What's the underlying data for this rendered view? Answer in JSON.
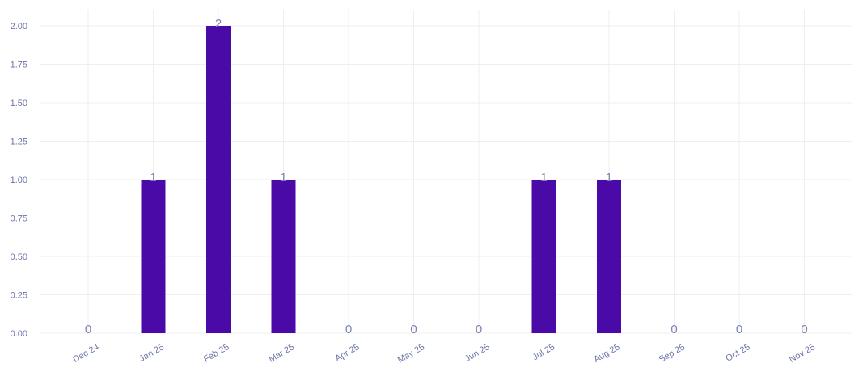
{
  "chart_data": {
    "type": "bar",
    "categories": [
      "Dec 24",
      "Jan 25",
      "Feb 25",
      "Mar 25",
      "Apr 25",
      "May 25",
      "Jun 25",
      "Jul 25",
      "Aug 25",
      "Sep 25",
      "Oct 25",
      "Nov 25"
    ],
    "values": [
      0,
      1,
      2,
      1,
      0,
      0,
      0,
      1,
      1,
      0,
      0,
      0
    ],
    "data_labels": [
      "0",
      "1",
      "2",
      "1",
      "0",
      "0",
      "0",
      "1",
      "1",
      "0",
      "0",
      "0"
    ],
    "y_ticks": [
      "0.00",
      "0.25",
      "0.50",
      "0.75",
      "1.00",
      "1.25",
      "1.50",
      "1.75",
      "2.00"
    ],
    "ylim": [
      0,
      2
    ],
    "grid": true,
    "legend": "none",
    "colors": {
      "bar": "#4a0aa8",
      "grid": "#efefef",
      "tick_label": "#6b73a6",
      "data_label": "#7b82b3"
    }
  }
}
